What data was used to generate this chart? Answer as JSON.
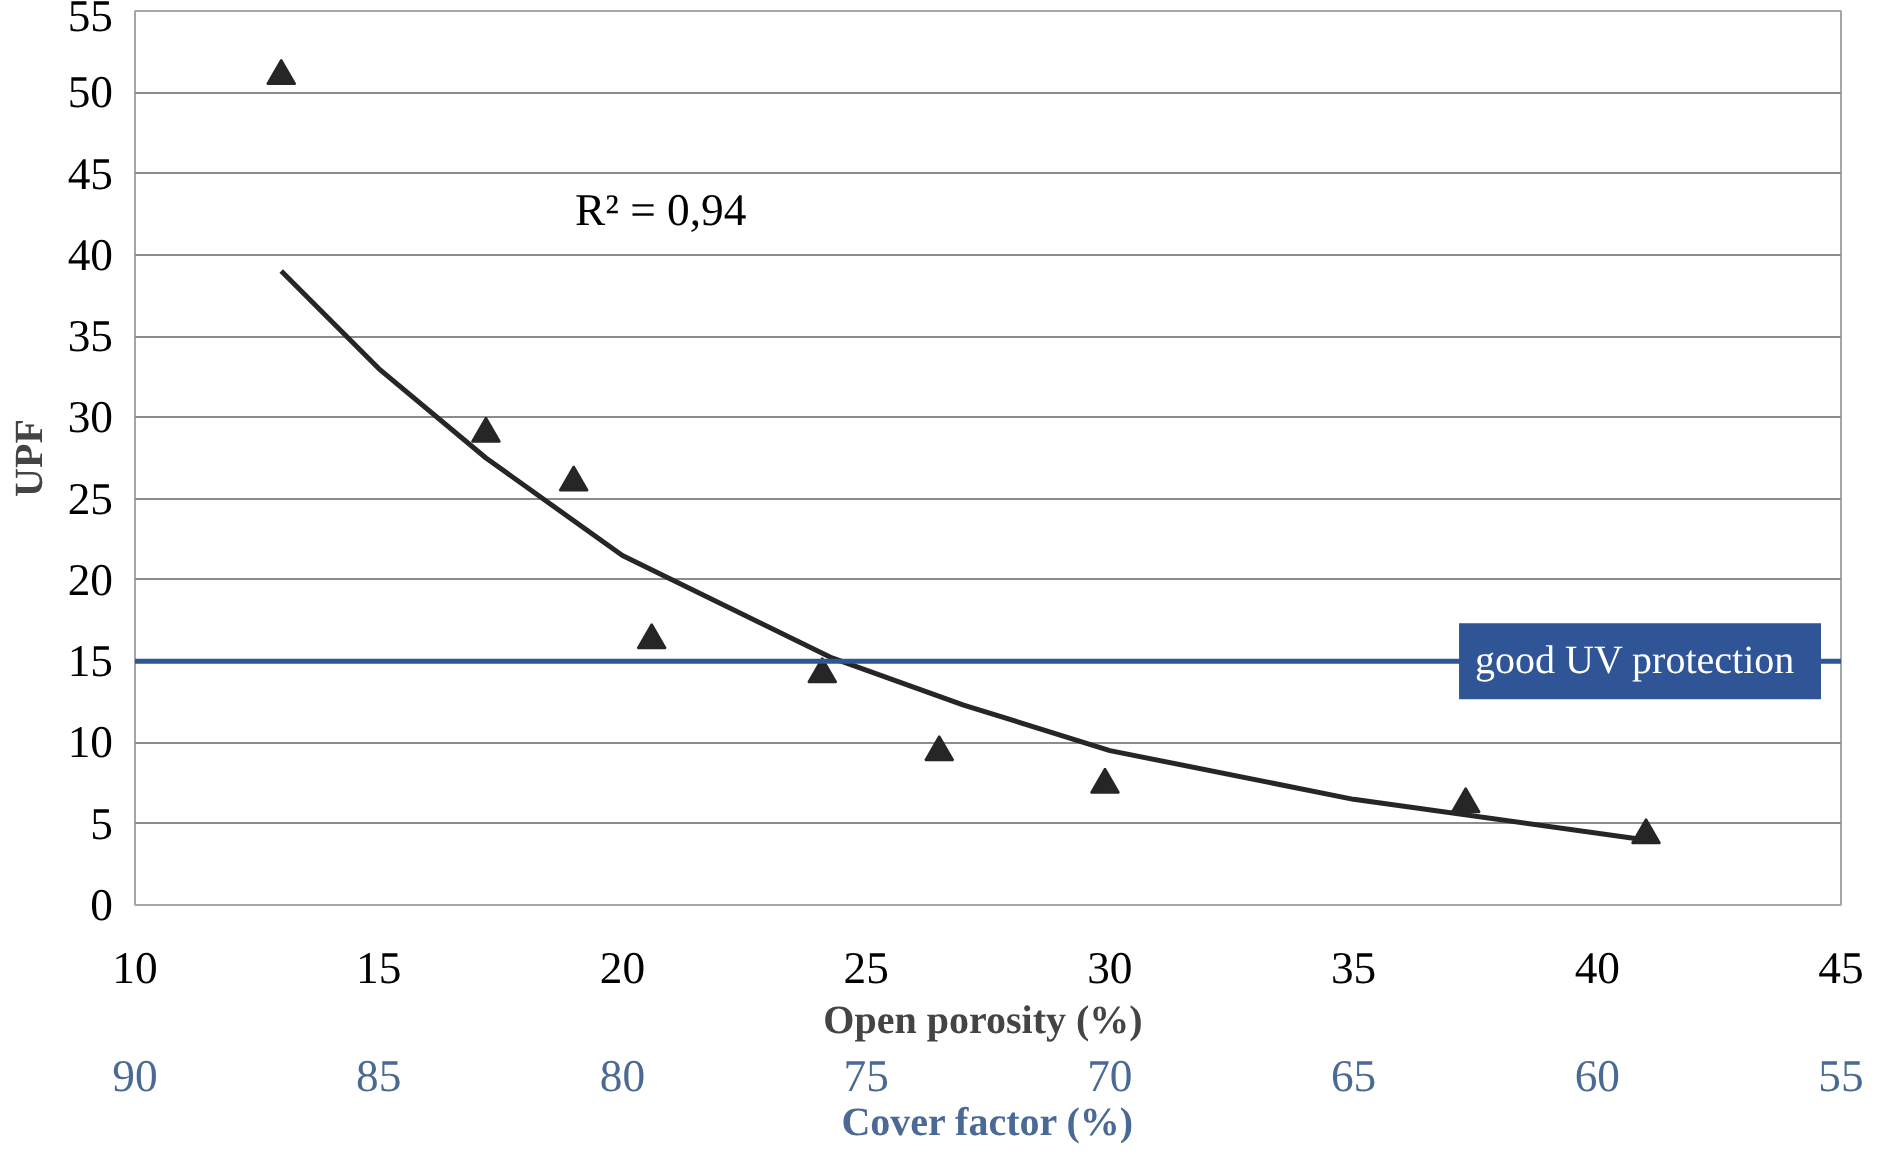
{
  "chart_data": {
    "type": "scatter",
    "xlabel": "Open porosity  (%)",
    "ylabel": "UPF",
    "x2label": "Cover factor (%)",
    "xlim": [
      10,
      45
    ],
    "xticks": [
      10,
      15,
      20,
      25,
      30,
      35,
      40,
      45
    ],
    "ylim": [
      0,
      55
    ],
    "yticks": [
      0,
      5,
      10,
      15,
      20,
      25,
      30,
      35,
      40,
      45,
      50,
      55
    ],
    "x2lim": [
      90,
      55
    ],
    "x2ticks": [
      90,
      85,
      80,
      75,
      70,
      65,
      60,
      55
    ],
    "grid": "y",
    "series": [
      {
        "marker": "triangle",
        "color": "#262626",
        "x": [
          13.0,
          17.2,
          19.0,
          20.6,
          24.1,
          26.5,
          29.9,
          37.3,
          41.0
        ],
        "values": [
          51,
          29,
          26,
          16.3,
          14.2,
          9.4,
          7.4,
          6.2,
          4.3
        ]
      },
      {
        "type": "line",
        "marker": "none",
        "line_style": "solid",
        "color": "#262626",
        "x": [
          13,
          15,
          17.2,
          20,
          24.3,
          27,
          30,
          35,
          41
        ],
        "values": [
          39,
          33,
          27.5,
          21.5,
          15.2,
          12.3,
          9.5,
          6.5,
          4.0
        ]
      }
    ],
    "ref_lines": [
      {
        "axis": "y",
        "value": 15,
        "label": "good  UV protection",
        "color": "#2f5597"
      }
    ],
    "annotations": [
      "R² = 0,94"
    ]
  }
}
